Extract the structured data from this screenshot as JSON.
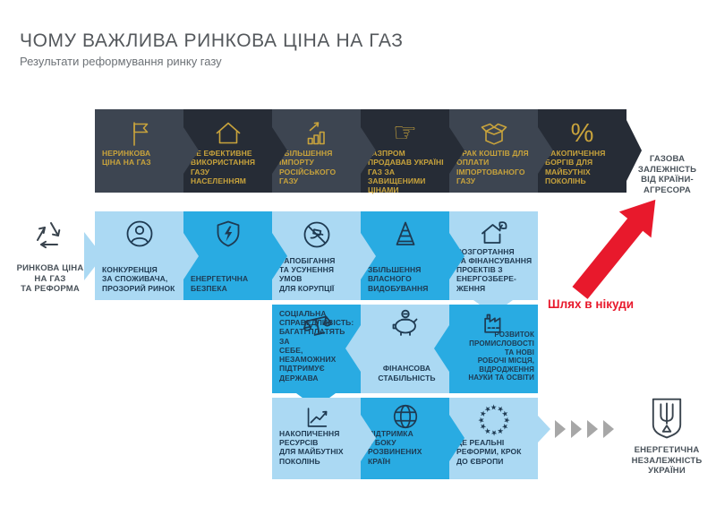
{
  "header": {
    "title": "ЧОМУ ВАЖЛИВА РИНКОВА ЦІНА НА ГАЗ",
    "subtitle": "Результати реформування ринку газу"
  },
  "negative_flow": {
    "steps": [
      {
        "icon": "flag-icon",
        "label": "НЕРИНКОВА\nЦІНА НА ГАЗ"
      },
      {
        "icon": "house-icon",
        "label": "НЕ ЕФЕКТИВНЕ\nВИКОРИСТАННЯ\nГАЗУ\nНАСЕЛЕННЯМ"
      },
      {
        "icon": "rising-bars-icon",
        "label": "ЗБІЛЬШЕННЯ\nІМПОРТУ\nРОСІЙСЬКОГО\nГАЗУ"
      },
      {
        "icon": "pointing-hand-icon",
        "label": "ГАЗПРОМ\nПРОДАВАВ УКРАЇНІ\nГАЗ ЗА\nЗАВИЩЕНИМИ\nЦІНАМИ"
      },
      {
        "icon": "open-box-icon",
        "label": "БРАК КОШТІВ ДЛЯ\nОПЛАТИ\nІМПОРТОВАНОГО\nГАЗУ"
      },
      {
        "icon": "percent-icon",
        "label": "НАКОПИЧЕННЯ\nБОРГІВ ДЛЯ\nМАЙБУТНІХ\nПОКОЛІНЬ"
      }
    ],
    "outcome": {
      "icon": "russian-eagle-icon",
      "label": "ГАЗОВА\nЗАЛЕЖНІСТЬ\nВІД КРАЇНИ-\nАГРЕСОРА"
    },
    "note": "Шлях в нікуди"
  },
  "positive_flow": {
    "source": {
      "icon": "recycle-icon",
      "label": "РИНКОВА ЦІНА\nНА ГАЗ\nТА РЕФОРМА"
    },
    "row1": [
      {
        "icon": "consumer-icon",
        "label": "КОНКУРЕНЦІЯ\nЗА СПОЖИВАЧА,\nПРОЗОРИЙ РИНОК"
      },
      {
        "icon": "shield-energy-icon",
        "label": "ЕНЕРГЕТИЧНА\nБЕЗПЕКА"
      },
      {
        "icon": "no-corruption-icon",
        "label": "ЗАПОБІГАННЯ\nТА УСУНЕННЯ\nУМОВ\nДЛЯ КОРУПЦІЇ"
      },
      {
        "icon": "derrick-icon",
        "label": "ЗБІЛЬШЕННЯ\nВЛАСНОГО\nВИДОБУВАННЯ"
      },
      {
        "icon": "eco-house-icon",
        "label": "РОЗГОРТАННЯ\nТА ФІНАНСУВАННЯ\nПРОЕКТІВ З\nЕНЕРГОЗБЕРЕ-\nЖЕННЯ"
      }
    ],
    "row2": [
      {
        "icon": "scales-icon",
        "label": "СОЦІАЛЬНА\nСПРАВЕДЛИВІСТЬ:\nБАГАТІ ПЛАТЯТЬ ЗА\nСЕБЕ, НЕЗАМОЖНИХ\nПІДТРИМУЄ ДЕРЖАВА"
      },
      {
        "icon": "piggy-bank-icon",
        "label": "ФІНАНСОВА\nСТАБІЛЬНІСТЬ"
      },
      {
        "icon": "factory-icon",
        "label": "РОЗВИТОК\nПРОМИСЛОВОСТІ\nТА НОВІ\nРОБОЧІ МІСЦЯ,\nВІДРОДЖЕННЯ\nНАУКИ ТА ОСВІТИ"
      }
    ],
    "row3": [
      {
        "icon": "growth-chart-icon",
        "label": "НАКОПИЧЕННЯ\nРЕСУРСІВ\nДЛЯ МАЙБУТНІХ\nПОКОЛІНЬ"
      },
      {
        "icon": "globe-icon",
        "label": "ПІДТРИМКА\nЗ БОКУ\nРОЗВИНЕНИХ КРАЇН"
      },
      {
        "icon": "eu-stars-icon",
        "label": "ЦЕ РЕАЛЬНІ\nРЕФОРМИ, КРОК\nДО ЄВРОПИ"
      }
    ],
    "outcome": {
      "icon": "tryzub-icon",
      "label": "ЕНЕРГЕТИЧНА\nНЕЗАЛЕЖНІСТЬ\nУКРАЇНИ"
    }
  },
  "colors": {
    "gold": "#c8a33c",
    "dark_panel": "#262c36",
    "dark_panel_alt": "#3d4551",
    "light_blue": "#abd9f3",
    "medium_blue": "#29abe2",
    "navy_text": "#1e3a52",
    "alert_red": "#e8192c",
    "chevron_gray": "#a7a7a7"
  }
}
